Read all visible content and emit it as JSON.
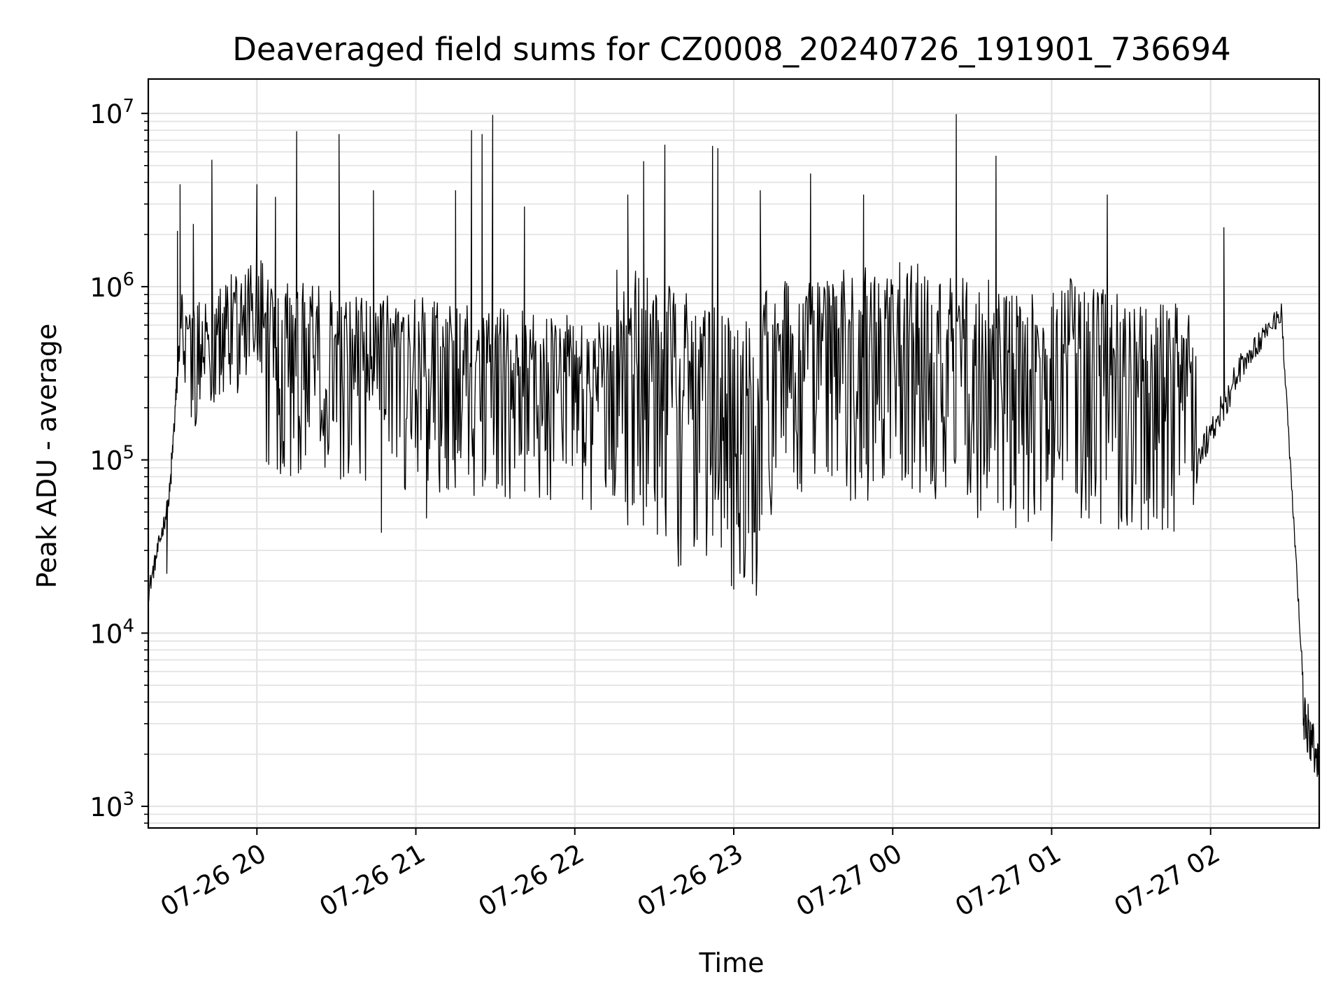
{
  "chart_data": {
    "type": "line",
    "title": "Deaveraged field sums for CZ0008_20240726_191901_736694",
    "xlabel": "Time",
    "ylabel": "Peak ADU - average",
    "y_scale": "log",
    "ylim": [
      750,
      15800000
    ],
    "xlim": [
      "2024-07-26 19:19",
      "2024-07-27 02:41"
    ],
    "grid": true,
    "legend": "none",
    "line_color": "#000000",
    "x_ticks": [
      {
        "label": "07-26 20",
        "t": "2024-07-26 20:00"
      },
      {
        "label": "07-26 21",
        "t": "2024-07-26 21:00"
      },
      {
        "label": "07-26 22",
        "t": "2024-07-26 22:00"
      },
      {
        "label": "07-26 23",
        "t": "2024-07-26 23:00"
      },
      {
        "label": "07-27 00",
        "t": "2024-07-27 00:00"
      },
      {
        "label": "07-27 01",
        "t": "2024-07-27 01:00"
      },
      {
        "label": "07-27 02",
        "t": "2024-07-27 02:00"
      }
    ],
    "y_ticks": [
      {
        "base": "10",
        "exp": "3",
        "value": 1000
      },
      {
        "base": "10",
        "exp": "4",
        "value": 10000
      },
      {
        "base": "10",
        "exp": "5",
        "value": 100000
      },
      {
        "base": "10",
        "exp": "6",
        "value": 1000000
      },
      {
        "base": "10",
        "exp": "7",
        "value": 10000000
      }
    ],
    "series": [
      {
        "segments": [
          {
            "from": "2024-07-26 19:19",
            "to": "2024-07-26 19:27",
            "start": 17000,
            "end": 60000,
            "band": [
              0.88,
              1.15
            ]
          },
          {
            "from": "2024-07-26 19:27",
            "to": "2024-07-26 19:32",
            "start": 60000,
            "end": 900000,
            "band": [
              0.8,
              1.25
            ]
          },
          {
            "from": "2024-07-26 19:32",
            "to": "2024-07-26 20:03",
            "start": 400000,
            "end": 800000,
            "band": [
              0.35,
              2.0
            ]
          },
          {
            "from": "2024-07-26 20:03",
            "to": "2024-07-26 22:15",
            "start": 700000,
            "end": 400000,
            "band": [
              0.12,
              1.6
            ]
          },
          {
            "from": "2024-07-26 22:15",
            "to": "2024-07-26 23:10",
            "start": 350000,
            "end": 150000,
            "band": [
              0.1,
              4.0
            ]
          },
          {
            "from": "2024-07-26 23:10",
            "to": "2024-07-27 00:00",
            "start": 300000,
            "end": 400000,
            "band": [
              0.15,
              3.5
            ]
          },
          {
            "from": "2024-07-27 00:00",
            "to": "2024-07-27 01:00",
            "start": 500000,
            "end": 300000,
            "band": [
              0.12,
              3.0
            ]
          },
          {
            "from": "2024-07-27 01:00",
            "to": "2024-07-27 01:55",
            "start": 250000,
            "end": 150000,
            "band": [
              0.2,
              5.0
            ]
          },
          {
            "from": "2024-07-27 01:55",
            "to": "2024-07-27 02:12",
            "start": 100000,
            "end": 350000,
            "band": [
              0.8,
              1.25
            ]
          },
          {
            "from": "2024-07-27 02:12",
            "to": "2024-07-27 02:27",
            "start": 350000,
            "end": 750000,
            "band": [
              0.85,
              1.15
            ]
          },
          {
            "from": "2024-07-27 02:27",
            "to": "2024-07-27 02:35",
            "start": 600000,
            "end": 5000,
            "band": [
              0.9,
              1.1
            ]
          },
          {
            "from": "2024-07-27 02:35",
            "to": "2024-07-27 02:41",
            "start": 3500,
            "end": 1900,
            "band": [
              0.65,
              1.35
            ]
          }
        ],
        "spikes": [
          {
            "t": "2024-07-26 19:30",
            "value": 2100000
          },
          {
            "t": "2024-07-26 19:31",
            "value": 3900000
          },
          {
            "t": "2024-07-26 19:36",
            "value": 2300000
          },
          {
            "t": "2024-07-26 19:43",
            "value": 5400000
          },
          {
            "t": "2024-07-26 20:00",
            "value": 3900000
          },
          {
            "t": "2024-07-26 20:07",
            "value": 3300000
          },
          {
            "t": "2024-07-26 20:15",
            "value": 7900000
          },
          {
            "t": "2024-07-26 20:31",
            "value": 7600000
          },
          {
            "t": "2024-07-26 20:44",
            "value": 3600000
          },
          {
            "t": "2024-07-26 21:15",
            "value": 3600000
          },
          {
            "t": "2024-07-26 21:21",
            "value": 8000000
          },
          {
            "t": "2024-07-26 21:25",
            "value": 7600000
          },
          {
            "t": "2024-07-26 21:29",
            "value": 9800000
          },
          {
            "t": "2024-07-26 21:41",
            "value": 2900000
          },
          {
            "t": "2024-07-26 22:20",
            "value": 3400000
          },
          {
            "t": "2024-07-26 22:26",
            "value": 5300000
          },
          {
            "t": "2024-07-26 22:34",
            "value": 6600000
          },
          {
            "t": "2024-07-26 22:52",
            "value": 6500000
          },
          {
            "t": "2024-07-26 22:54",
            "value": 6300000
          },
          {
            "t": "2024-07-26 23:10",
            "value": 3600000
          },
          {
            "t": "2024-07-26 23:29",
            "value": 4500000
          },
          {
            "t": "2024-07-26 23:49",
            "value": 3400000
          },
          {
            "t": "2024-07-27 00:24",
            "value": 9900000
          },
          {
            "t": "2024-07-27 00:39",
            "value": 5700000
          },
          {
            "t": "2024-07-27 01:21",
            "value": 3400000
          },
          {
            "t": "2024-07-27 02:05",
            "value": 2200000
          }
        ],
        "dips": [
          {
            "t": "2024-07-26 19:26",
            "value": 22000
          },
          {
            "t": "2024-07-26 20:47",
            "value": 38000
          },
          {
            "t": "2024-07-26 21:04",
            "value": 46000
          },
          {
            "t": "2024-07-26 23:02",
            "value": 41000
          },
          {
            "t": "2024-07-27 01:00",
            "value": 34000
          }
        ]
      }
    ]
  }
}
